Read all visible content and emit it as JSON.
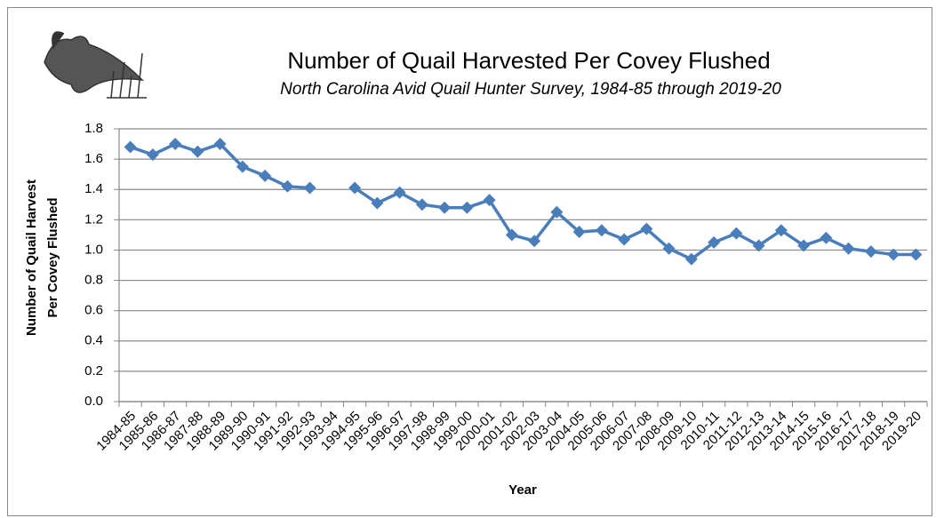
{
  "chart_data": {
    "type": "line",
    "title": "Number of Quail Harvested Per Covey  Flushed",
    "subtitle": "North Carolina Avid Quail Hunter Survey, 1984-85 through 2019-20",
    "xlabel": "Year",
    "ylabel": [
      "Number of Quail Harvest",
      "Per Covey Flushed"
    ],
    "categories": [
      "1984-85",
      "1985-86",
      "1986-87",
      "1987-88",
      "1988-89",
      "1989-90",
      "1990-91",
      "1991-92",
      "1992-93",
      "1993-94",
      "1994-95",
      "1995-96",
      "1996-97",
      "1997-98",
      "1998-99",
      "1999-00",
      "2000-01",
      "2001-02",
      "2002-03",
      "2003-04",
      "2004-05",
      "2005-06",
      "2006-07",
      "2007-08",
      "2008-09",
      "2009-10",
      "2010-11",
      "2011-12",
      "2012-13",
      "2013-14",
      "2014-15",
      "2015-16",
      "2016-17",
      "2017-18",
      "2018-19",
      "2019-20"
    ],
    "values": [
      1.68,
      1.63,
      1.7,
      1.65,
      1.7,
      1.55,
      1.49,
      1.42,
      1.41,
      null,
      1.41,
      1.31,
      1.38,
      1.3,
      1.28,
      1.28,
      1.33,
      1.1,
      1.06,
      1.25,
      1.12,
      1.13,
      1.07,
      1.14,
      1.01,
      0.94,
      1.05,
      1.11,
      1.03,
      1.13,
      1.03,
      1.08,
      1.01,
      0.99,
      0.97,
      0.97
    ],
    "color": "#4a7ebb",
    "ylim": [
      0,
      1.8
    ],
    "yticks": [
      {
        "value": 0,
        "label": "0.0"
      },
      0.2,
      0.4,
      0.6,
      0.8,
      {
        "value": 1,
        "label": "1.0"
      },
      1.2,
      1.4,
      1.6,
      1.8
    ],
    "grid": true
  }
}
